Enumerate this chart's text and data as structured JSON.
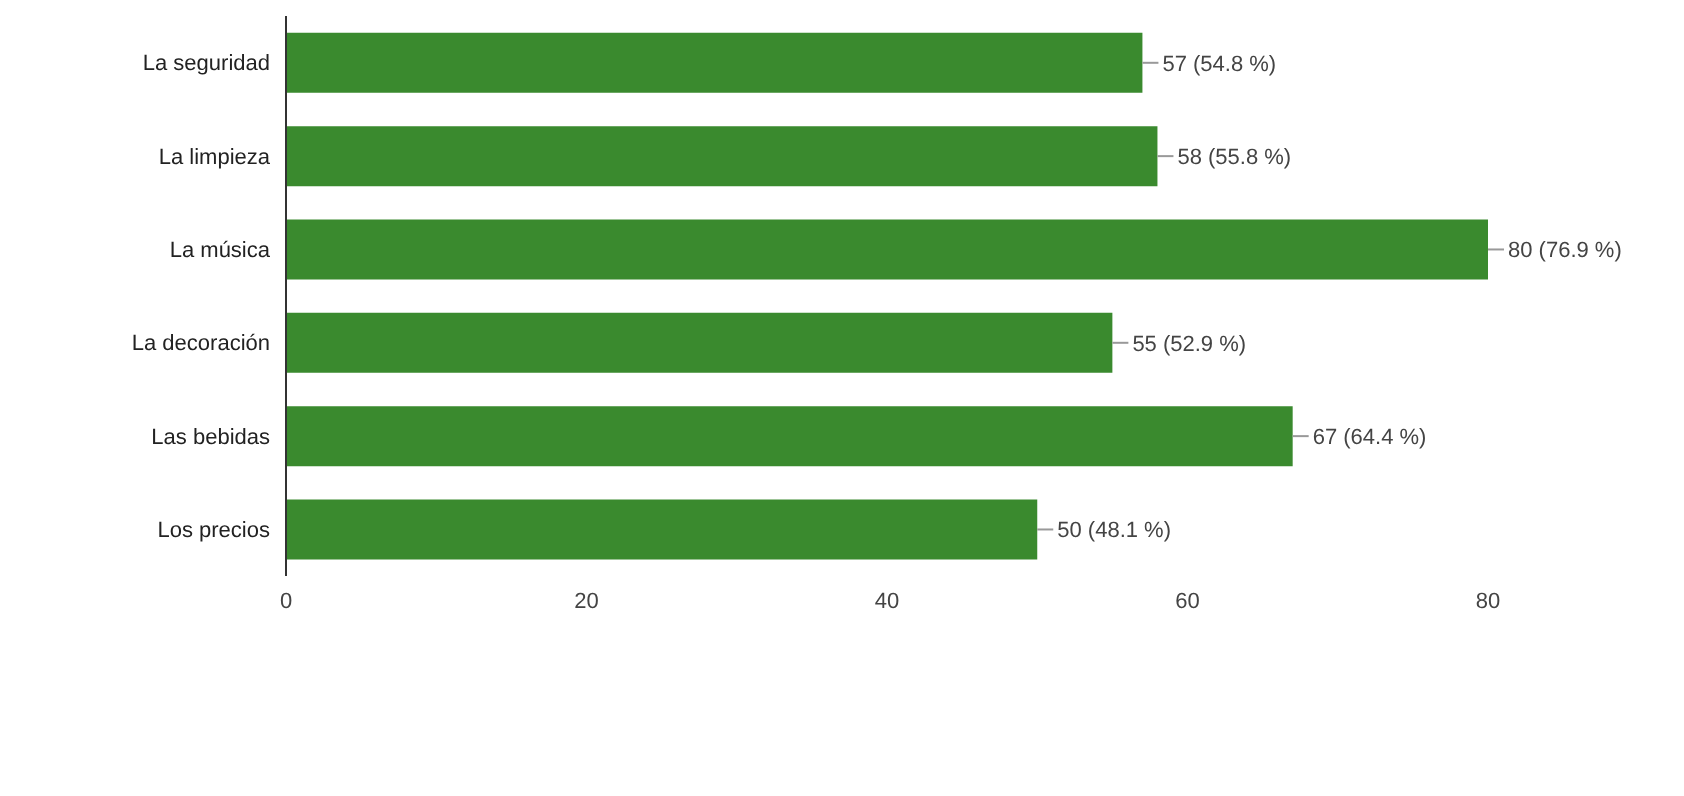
{
  "chart_data": {
    "type": "bar",
    "orientation": "horizontal",
    "categories": [
      "La seguridad",
      "La limpieza",
      "La música",
      "La decoración",
      "Las bebidas",
      "Los precios"
    ],
    "values": [
      57,
      58,
      80,
      55,
      67,
      50
    ],
    "value_labels": [
      "57 (54.8 %)",
      "58 (55.8 %)",
      "80 (76.9 %)",
      "55 (52.9 %)",
      "67 (64.4 %)",
      "50 (48.1 %)"
    ],
    "color": "#3a8a2e",
    "xlim": [
      0,
      80
    ],
    "xticks": [
      0,
      20,
      40,
      60,
      80
    ]
  }
}
